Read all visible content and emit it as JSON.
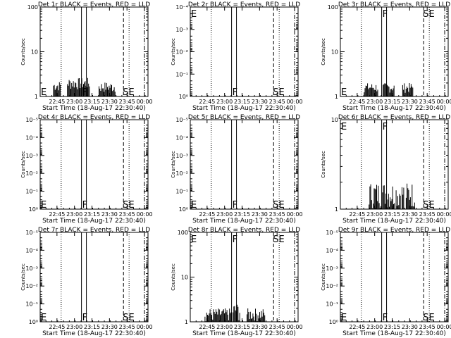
{
  "chart_data": [
    {
      "type": "line",
      "title": "Det 1r BLACK = Events, RED = LLD",
      "xlabel": "Start Time (18-Aug-17 22:30:40)",
      "ylabel": "Counts/sec",
      "xticks": [
        "22:45",
        "23:00",
        "23:15",
        "23:30",
        "23:45",
        "00:00"
      ],
      "yticks": [
        {
          "v": 100,
          "label": "100"
        },
        {
          "v": 10,
          "label": "10"
        },
        {
          "v": 1,
          "label": "1"
        }
      ],
      "ylim": [
        1,
        100
      ],
      "markers": {
        "E": "E",
        "F": "F",
        "SE": "SE"
      },
      "events": [
        {
          "x": [
            22.7,
            22.8
          ],
          "y": [
            1.3,
            2.2
          ]
        },
        {
          "x": [
            22.9,
            23.22
          ],
          "y": [
            1.4,
            2.6
          ]
        },
        {
          "x": [
            23.35,
            23.58
          ],
          "y": [
            1.2,
            2.1
          ]
        }
      ]
    },
    {
      "type": "line",
      "title": "Det 2r BLACK = Events, RED = LLD",
      "xlabel": "Start Time (18-Aug-17 22:30:40)",
      "ylabel": "Counts/sec",
      "xticks": [
        "22:45",
        "23:00",
        "23:15",
        "23:30",
        "23:45",
        "00:00"
      ],
      "yticks": [
        {
          "v": 0.0001,
          "label": "10⁻⁴"
        },
        {
          "v": 0.001,
          "label": "10⁻³"
        },
        {
          "v": 0.01,
          "label": "10⁻²"
        },
        {
          "v": 0.1,
          "label": "10⁻¹"
        },
        {
          "v": 1,
          "label": "10⁰"
        }
      ],
      "ylim": [
        1,
        0.0001
      ],
      "markers": {
        "E": "E",
        "F": "F",
        "SE": "SE"
      },
      "events": []
    },
    {
      "type": "line",
      "title": "Det 3r BLACK = Events, RED = LLD",
      "xlabel": "Start Time (18-Aug-17 22:30:40)",
      "ylabel": "Counts/sec",
      "xticks": [
        "22:45",
        "23:00",
        "23:15",
        "23:30",
        "23:45",
        "00:00"
      ],
      "yticks": [
        {
          "v": 100,
          "label": "100"
        },
        {
          "v": 10,
          "label": "10"
        },
        {
          "v": 1,
          "label": "1"
        }
      ],
      "ylim": [
        1,
        100
      ],
      "markers": {
        "E": "E",
        "F": "F",
        "SE": "SE"
      },
      "events": [
        {
          "x": [
            22.85,
            23.05
          ],
          "y": [
            1.2,
            2.0
          ]
        },
        {
          "x": [
            23.12,
            23.28
          ],
          "y": [
            1.2,
            2.0
          ]
        },
        {
          "x": [
            23.4,
            23.55
          ],
          "y": [
            1.2,
            2.0
          ]
        }
      ]
    },
    {
      "type": "line",
      "title": "Det 4r BLACK = Events, RED = LLD",
      "xlabel": "Start Time (18-Aug-17 22:30:40)",
      "ylabel": "Counts/sec",
      "xticks": [
        "22:45",
        "23:00",
        "23:15",
        "23:30",
        "23:45",
        "00:00"
      ],
      "yticks": [
        {
          "v": 1e-05,
          "label": "10⁻⁵"
        },
        {
          "v": 0.0001,
          "label": "10⁻⁴"
        },
        {
          "v": 0.001,
          "label": "10⁻³"
        },
        {
          "v": 0.01,
          "label": "10⁻²"
        },
        {
          "v": 0.1,
          "label": "10⁻¹"
        },
        {
          "v": 1,
          "label": "10⁰"
        }
      ],
      "ylim": [
        1,
        1e-05
      ],
      "markers": {
        "E": "E",
        "F": "F",
        "SE": "SE"
      },
      "events": []
    },
    {
      "type": "line",
      "title": "Det 5r BLACK = Events, RED = LLD",
      "xlabel": "Start Time (18-Aug-17 22:30:40)",
      "ylabel": "Counts/sec",
      "xticks": [
        "22:45",
        "23:00",
        "23:15",
        "23:30",
        "23:45",
        "00:00"
      ],
      "yticks": [
        {
          "v": 1e-05,
          "label": "10⁻⁵"
        },
        {
          "v": 0.0001,
          "label": "10⁻⁴"
        },
        {
          "v": 0.001,
          "label": "10⁻³"
        },
        {
          "v": 0.01,
          "label": "10⁻²"
        },
        {
          "v": 0.1,
          "label": "10⁻¹"
        },
        {
          "v": 1,
          "label": "10⁰"
        }
      ],
      "ylim": [
        1,
        1e-05
      ],
      "markers": {
        "E": "E",
        "F": "F",
        "SE": "SE"
      },
      "events": []
    },
    {
      "type": "line",
      "title": "Det 6r BLACK = Events, RED = LLD",
      "xlabel": "Start Time (18-Aug-17 22:30:40)",
      "ylabel": "Counts/sec",
      "xticks": [
        "22:45",
        "23:00",
        "23:15",
        "23:30",
        "23:45",
        "00:00"
      ],
      "yticks": [
        {
          "v": 10,
          "label": "10"
        },
        {
          "v": 1,
          "label": "1"
        }
      ],
      "ylim": [
        1,
        10
      ],
      "markers": {
        "E": "E",
        "F": "F",
        "SE": "SE"
      },
      "events": [
        {
          "x": [
            22.92,
            23.42
          ],
          "y": [
            1.0,
            2.0
          ]
        },
        {
          "x": [
            23.45,
            23.58
          ],
          "y": [
            1.0,
            2.0
          ]
        }
      ]
    },
    {
      "type": "line",
      "title": "Det 7r BLACK = Events, RED = LLD",
      "xlabel": "Start Time (18-Aug-17 22:30:40)",
      "ylabel": "Counts/sec",
      "xticks": [
        "22:45",
        "23:00",
        "23:15",
        "23:30",
        "23:45",
        "00:00"
      ],
      "yticks": [
        {
          "v": 1e-05,
          "label": "10⁻⁵"
        },
        {
          "v": 0.0001,
          "label": "10⁻⁴"
        },
        {
          "v": 0.001,
          "label": "10⁻³"
        },
        {
          "v": 0.01,
          "label": "10⁻²"
        },
        {
          "v": 0.1,
          "label": "10⁻¹"
        },
        {
          "v": 1,
          "label": "10⁰"
        }
      ],
      "ylim": [
        1,
        1e-05
      ],
      "markers": {
        "E": "E",
        "F": "F",
        "SE": "SE"
      },
      "events": []
    },
    {
      "type": "line",
      "title": "Det 8r BLACK = Events, RED = LLD",
      "xlabel": "Start Time (18-Aug-17 22:30:40)",
      "ylabel": "Counts/sec",
      "xticks": [
        "22:45",
        "23:00",
        "23:15",
        "23:30",
        "23:45",
        "00:00"
      ],
      "yticks": [
        {
          "v": 100,
          "label": "100"
        },
        {
          "v": 10,
          "label": "10"
        },
        {
          "v": 1,
          "label": "1"
        }
      ],
      "ylim": [
        1,
        100
      ],
      "markers": {
        "E": "E",
        "F": "F",
        "SE": "SE"
      },
      "events": [
        {
          "x": [
            22.72,
            23.1
          ],
          "y": [
            1.0,
            2.0
          ]
        },
        {
          "x": [
            23.12,
            23.22
          ],
          "y": [
            1.0,
            2.6
          ]
        },
        {
          "x": [
            23.32,
            23.58
          ],
          "y": [
            1.0,
            2.0
          ]
        }
      ]
    },
    {
      "type": "line",
      "title": "Det 9r BLACK = Events, RED = LLD",
      "xlabel": "Start Time (18-Aug-17 22:30:40)",
      "ylabel": "Counts/sec",
      "xticks": [
        "22:45",
        "23:00",
        "23:15",
        "23:30",
        "23:45",
        "00:00"
      ],
      "yticks": [
        {
          "v": 1e-05,
          "label": "10⁻⁵"
        },
        {
          "v": 0.0001,
          "label": "10⁻⁴"
        },
        {
          "v": 0.001,
          "label": "10⁻³"
        },
        {
          "v": 0.01,
          "label": "10⁻²"
        },
        {
          "v": 0.1,
          "label": "10⁻¹"
        },
        {
          "v": 1,
          "label": "10⁰"
        }
      ],
      "ylim": [
        1,
        1e-05
      ],
      "markers": {
        "E": "E",
        "F": "F",
        "SE": "SE"
      },
      "events": []
    }
  ],
  "time_lines": {
    "dotted_1": 22.81,
    "flare_start": 23.1,
    "flare_end": 23.17,
    "dashed": 23.7,
    "dotted_2": 23.78,
    "dashdot": 24.0
  },
  "xrange": [
    22.51,
    24.05
  ],
  "tick_times": [
    22.75,
    23.0,
    23.25,
    23.5,
    23.75,
    24.0
  ]
}
